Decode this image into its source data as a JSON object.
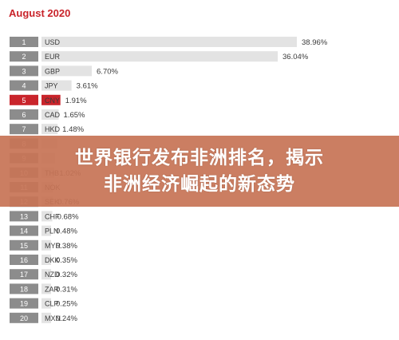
{
  "chart_data": {
    "type": "bar",
    "title": "August 2020",
    "ranks": [
      "1",
      "2",
      "3",
      "4",
      "5",
      "6",
      "7",
      "8",
      "9",
      "10",
      "11",
      "12",
      "13",
      "14",
      "15",
      "16",
      "17",
      "18",
      "19",
      "20"
    ],
    "categories": [
      "USD",
      "EUR",
      "GBP",
      "JPY",
      "CNY",
      "CAD",
      "HKD",
      "",
      "",
      "THB",
      "NOK",
      "SEK",
      "CHF",
      "PLN",
      "MYR",
      "DKK",
      "NZD",
      "ZAR",
      "CLP",
      "MXN"
    ],
    "values": [
      38.96,
      36.04,
      6.7,
      3.61,
      1.91,
      1.65,
      1.48,
      1.45,
      1.1,
      1.02,
      0.8,
      0.76,
      0.68,
      0.48,
      0.38,
      0.35,
      0.32,
      0.31,
      0.25,
      0.24
    ],
    "labels": [
      "38.96%",
      "36.04%",
      "6.70%",
      "3.61%",
      "1.91%",
      "1.65%",
      "1.48%",
      "",
      "",
      "1.02%",
      "",
      "0.76%",
      "0.68%",
      "0.48%",
      "0.38%",
      "0.35%",
      "0.32%",
      "0.31%",
      "0.25%",
      "0.24%"
    ],
    "highlight_index": 4,
    "colors": {
      "rank_box": "#8c8c8c",
      "bar": "#e3e3e3",
      "highlight": "#c9242b",
      "title": "#c9242b"
    }
  },
  "overlay": {
    "line1": "世界银行发布非洲排名，揭示",
    "line2": "非洲经济崛起的新态势"
  }
}
